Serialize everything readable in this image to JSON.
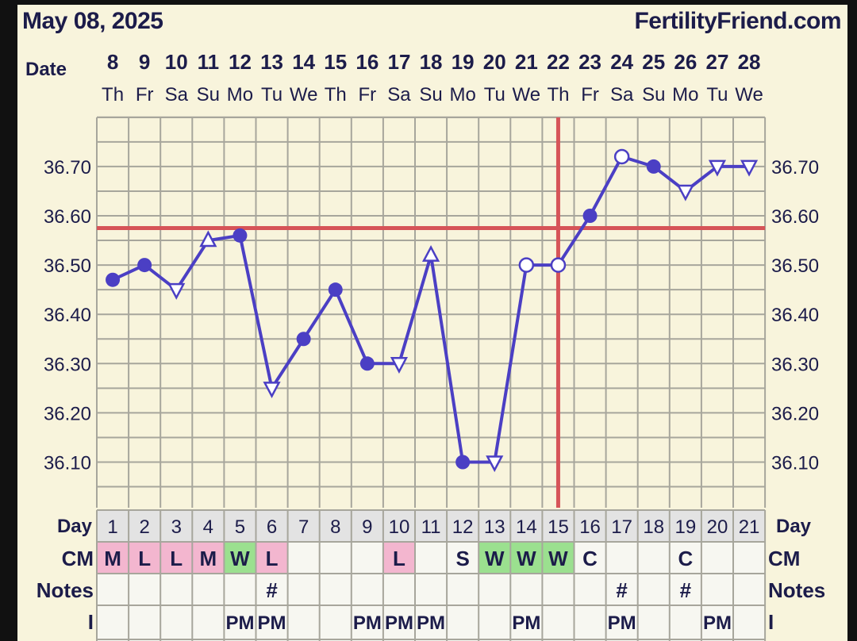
{
  "header": {
    "date": "May 08, 2025",
    "site": "FertilityFriend.com"
  },
  "colors": {
    "background": "#f8f4dc",
    "grid": "#a7a69c",
    "line": "#4b3fc4",
    "coverline": "#d65458",
    "cm_pink": "#f3b6cf",
    "cm_green": "#9be08f",
    "cell_white": "#f7f7f1",
    "row_header": "#e3e3e3"
  },
  "chart_data": {
    "type": "line",
    "title": "",
    "xlabel": "",
    "ylabel": "",
    "date_label": "Date",
    "dates": [
      "8",
      "9",
      "10",
      "11",
      "12",
      "13",
      "14",
      "15",
      "16",
      "17",
      "18",
      "19",
      "20",
      "21",
      "22",
      "23",
      "24",
      "25",
      "26",
      "27",
      "28"
    ],
    "weekdays": [
      "Th",
      "Fr",
      "Sa",
      "Su",
      "Mo",
      "Tu",
      "We",
      "Th",
      "Fr",
      "Sa",
      "Su",
      "Mo",
      "Tu",
      "We",
      "Th",
      "Fr",
      "Sa",
      "Su",
      "Mo",
      "Tu",
      "We"
    ],
    "ylim": [
      36.0,
      36.8
    ],
    "yticks": [
      "36.10",
      "36.20",
      "36.30",
      "36.40",
      "36.50",
      "36.60",
      "36.70"
    ],
    "series": [
      {
        "values": [
          36.47,
          36.5,
          36.45,
          36.55,
          36.56,
          36.25,
          36.35,
          36.45,
          36.3,
          36.3,
          36.52,
          36.1,
          36.1,
          36.5,
          36.5,
          36.6,
          36.72,
          36.7,
          36.65,
          36.7,
          36.7
        ],
        "markers": [
          "dot",
          "dot",
          "tri",
          "tri",
          "dot",
          "tri",
          "dot",
          "dot",
          "dot",
          "tri",
          "tri",
          "dot",
          "tri",
          "circle",
          "circle",
          "dot",
          "circle",
          "dot",
          "tri",
          "tri",
          "tri"
        ]
      }
    ],
    "coverline": 36.575,
    "ovulation_day_index": 14,
    "grid": true
  },
  "table": {
    "day_label": "Day",
    "cm_label": "CM",
    "notes_label": "Notes",
    "i_label": "I",
    "days": [
      "1",
      "2",
      "3",
      "4",
      "5",
      "6",
      "7",
      "8",
      "9",
      "10",
      "11",
      "12",
      "13",
      "14",
      "15",
      "16",
      "17",
      "18",
      "19",
      "20",
      "21"
    ],
    "cm": [
      "M",
      "L",
      "L",
      "M",
      "W",
      "L",
      "",
      "",
      "",
      "L",
      "",
      "S",
      "W",
      "W",
      "W",
      "C",
      "",
      "",
      "C",
      "",
      ""
    ],
    "cm_colors": [
      "pink",
      "pink",
      "pink",
      "pink",
      "green",
      "pink",
      "",
      "",
      "",
      "pink",
      "",
      "",
      "green",
      "green",
      "green",
      "",
      "",
      "",
      "",
      "",
      ""
    ],
    "notes": [
      "",
      "",
      "",
      "",
      "",
      "#",
      "",
      "",
      "",
      "",
      "",
      "",
      "",
      "",
      "",
      "",
      "#",
      "",
      "#",
      "",
      ""
    ],
    "i": [
      "",
      "",
      "",
      "",
      "PM",
      "PM",
      "",
      "",
      "PM",
      "PM",
      "PM",
      "",
      "",
      "PM",
      "",
      "",
      "PM",
      "",
      "",
      "PM",
      ""
    ]
  }
}
